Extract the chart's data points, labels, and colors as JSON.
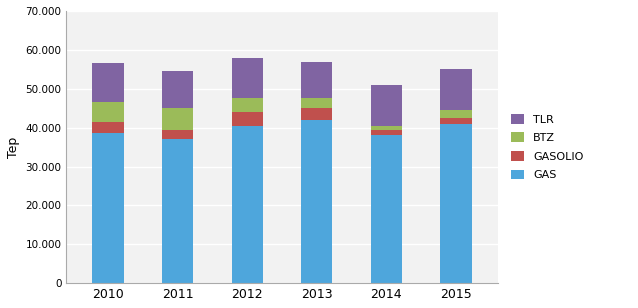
{
  "years": [
    "2010",
    "2011",
    "2012",
    "2013",
    "2014",
    "2015"
  ],
  "GAS": [
    38500,
    37000,
    40500,
    42000,
    38000,
    41000
  ],
  "GASOLIO": [
    3000,
    2500,
    3500,
    3000,
    1500,
    1500
  ],
  "BTZ": [
    5000,
    5500,
    3500,
    2500,
    1000,
    2000
  ],
  "TLR": [
    10000,
    9500,
    10500,
    9500,
    10500,
    10500
  ],
  "colors": {
    "GAS": "#4ea6dc",
    "GASOLIO": "#c0504d",
    "BTZ": "#9bbb59",
    "TLR": "#8064a2"
  },
  "ylabel": "Tep",
  "ylim": [
    0,
    70000
  ],
  "yticks": [
    0,
    10000,
    20000,
    30000,
    40000,
    50000,
    60000,
    70000
  ],
  "ytick_labels": [
    "0",
    "10.000",
    "20.000",
    "30.000",
    "40.000",
    "50.000",
    "60.000",
    "70.000"
  ],
  "bar_width": 0.45,
  "background_color": "#ffffff",
  "plot_bg_color": "#f2f2f2",
  "grid_color": "#ffffff"
}
